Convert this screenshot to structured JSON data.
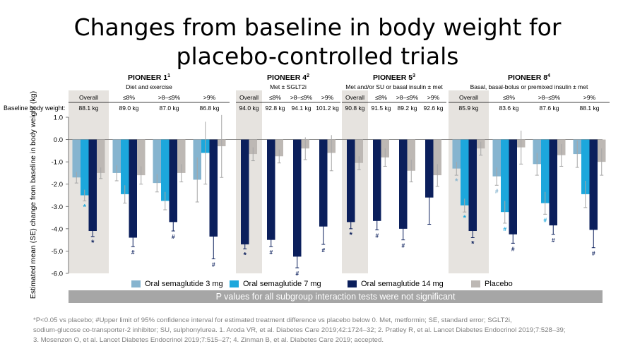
{
  "title": {
    "line1": "Changes from baseline in body weight for",
    "line2": "placebo-controlled trials"
  },
  "colors": {
    "sema3": "#86b4cf",
    "sema7": "#1ca7dc",
    "sema14": "#0b1f5c",
    "placebo": "#bdb8b4",
    "shade": "#e6e3df",
    "banner": "#a6a6a6"
  },
  "chart_data": {
    "type": "bar",
    "ylabel": "Estimated mean (SE) change from baseline in body weight (kg)",
    "ylim": [
      -6.0,
      1.0
    ],
    "yticks": [
      "1.0",
      "0.0",
      "-1.0",
      "-2.0",
      "-3.0",
      "-4.0",
      "-5.0",
      "-6.0"
    ],
    "baseline_label": "Baseline body weight:",
    "series_names": [
      "Oral semaglutide 3 mg",
      "Oral semaglutide 7 mg",
      "Oral semaglutide 14 mg",
      "Placebo"
    ],
    "trials": [
      {
        "name": "PIONEER 1",
        "sup": "1",
        "subtitle": "Diet and exercise",
        "groups": [
          {
            "label": "Overall",
            "baseline": "88.1 kg",
            "shaded": true,
            "bars": [
              {
                "v": -1.7,
                "e": 0.25
              },
              {
                "v": -2.5,
                "e": 0.25,
                "mark": "*"
              },
              {
                "v": -4.1,
                "e": 0.25,
                "mark": "*"
              },
              {
                "v": -1.5,
                "e": 0.25
              }
            ]
          },
          {
            "label": "≤8%",
            "baseline": "89.0 kg",
            "bars": [
              {
                "v": -1.5,
                "e": 0.35
              },
              {
                "v": -2.45,
                "e": 0.4
              },
              {
                "v": -4.4,
                "e": 0.4,
                "mark": "#"
              },
              {
                "v": -1.6,
                "e": 0.4
              }
            ]
          },
          {
            "label": ">8–≤9%",
            "baseline": "87.0 kg",
            "bars": [
              {
                "v": -1.95,
                "e": 0.4
              },
              {
                "v": -2.75,
                "e": 0.4
              },
              {
                "v": -3.7,
                "e": 0.4,
                "mark": "#"
              },
              {
                "v": -1.5,
                "e": 0.4
              }
            ]
          },
          {
            "label": ">9%",
            "baseline": "86.8 kg",
            "bars": [
              {
                "v": -1.8,
                "e": 1.0
              },
              {
                "v": -0.6,
                "e": 1.4
              },
              {
                "v": -4.35,
                "e": 1.0,
                "mark": "#"
              },
              {
                "v": -0.3,
                "e": 1.4
              }
            ]
          }
        ]
      },
      {
        "name": "PIONEER 4",
        "sup": "2",
        "subtitle": "Met ± SGLT2i",
        "groups": [
          {
            "label": "Overall",
            "baseline": "94.0 kg",
            "shaded": true,
            "bars": [
              {
                "v": -4.7,
                "e": 0.2,
                "mark": "*"
              },
              {
                "v": -0.65,
                "e": 0.3
              }
            ]
          },
          {
            "label": "≤8%",
            "baseline": "92.8 kg",
            "bars": [
              {
                "v": -4.5,
                "e": 0.3,
                "mark": "#"
              },
              {
                "v": -0.75,
                "e": 0.3
              }
            ]
          },
          {
            "label": ">8–≤9%",
            "baseline": "94.1 kg",
            "bars": [
              {
                "v": -5.25,
                "e": 0.5,
                "mark": "#"
              },
              {
                "v": -0.4,
                "e": 0.5
              }
            ]
          },
          {
            "label": ">9%",
            "baseline": "101.2 kg",
            "bars": [
              {
                "v": -3.9,
                "e": 0.8,
                "mark": "#"
              },
              {
                "v": -0.6,
                "e": 0.8
              }
            ]
          }
        ]
      },
      {
        "name": "PIONEER 5",
        "sup": "3",
        "subtitle": "Met and/or SU or basal insulin ± met",
        "groups": [
          {
            "label": "Overall",
            "baseline": "90.8 kg",
            "shaded": true,
            "bars": [
              {
                "v": -3.7,
                "e": 0.3,
                "mark": "*"
              },
              {
                "v": -1.05,
                "e": 0.3
              }
            ]
          },
          {
            "label": "≤8%",
            "baseline": "91.5 kg",
            "bars": [
              {
                "v": -3.65,
                "e": 0.4,
                "mark": "#"
              },
              {
                "v": -0.8,
                "e": 0.4
              }
            ]
          },
          {
            "label": ">8–≤9%",
            "baseline": "89.2 kg",
            "bars": [
              {
                "v": -4.0,
                "e": 0.5,
                "mark": "#"
              },
              {
                "v": -1.4,
                "e": 0.5
              }
            ]
          },
          {
            "label": ">9%",
            "baseline": "92.6 kg",
            "bars": [
              {
                "v": -2.6,
                "e": 1.2
              },
              {
                "v": -1.6,
                "e": 0.5
              }
            ]
          }
        ]
      },
      {
        "name": "PIONEER 8",
        "sup": "4",
        "subtitle": "Basal, basal-bolus or premixed insulin ± met",
        "groups": [
          {
            "label": "Overall",
            "baseline": "85.9 kg",
            "shaded": true,
            "bars": [
              {
                "v": -1.3,
                "e": 0.3,
                "mark": "*"
              },
              {
                "v": -2.95,
                "e": 0.3,
                "mark": "*"
              },
              {
                "v": -4.1,
                "e": 0.3,
                "mark": "*"
              },
              {
                "v": -0.4,
                "e": 0.3
              }
            ]
          },
          {
            "label": "≤8%",
            "baseline": "83.6 kg",
            "bars": [
              {
                "v": -1.65,
                "e": 0.4,
                "mark": "#"
              },
              {
                "v": -3.25,
                "e": 0.5,
                "mark": "#"
              },
              {
                "v": -4.25,
                "e": 0.4,
                "mark": "#"
              },
              {
                "v": -0.35,
                "e": 0.75
              }
            ]
          },
          {
            "label": ">8–≤9%",
            "baseline": "87.6 kg",
            "bars": [
              {
                "v": -1.1,
                "e": 0.5
              },
              {
                "v": -2.85,
                "e": 0.5,
                "mark": "#"
              },
              {
                "v": -3.85,
                "e": 0.4,
                "mark": "#"
              },
              {
                "v": -0.7,
                "e": 0.5
              }
            ]
          },
          {
            "label": ">9%",
            "baseline": "88.1 kg",
            "bars": [
              {
                "v": -0.65,
                "e": 0.6
              },
              {
                "v": -2.45,
                "e": 0.6
              },
              {
                "v": -4.05,
                "e": 0.8,
                "mark": "#"
              },
              {
                "v": -1.0,
                "e": 0.6
              }
            ]
          }
        ]
      }
    ]
  },
  "banner": "P values for all subgroup interaction tests were not significant",
  "footnote": {
    "line1": "*P<0.05 vs placebo; #Upper limit of 95% confidence interval for estimated treatment difference vs placebo below 0. Met, metformin; SE, standard error; SGLT2i,",
    "line2": "sodium-glucose co-transporter-2 inhibitor; SU, sulphonylurea. 1. Aroda VR, et al. Diabetes Care 2019;42:1724–32; 2. Pratley R, et al. Lancet Diabetes Endocrinol 2019;7:528–39;",
    "line3": "3. Mosenzon O, et al. Lancet Diabetes Endocrinol 2019;7:515–27; 4. Zinman B, et al. Diabetes Care 2019; accepted."
  }
}
